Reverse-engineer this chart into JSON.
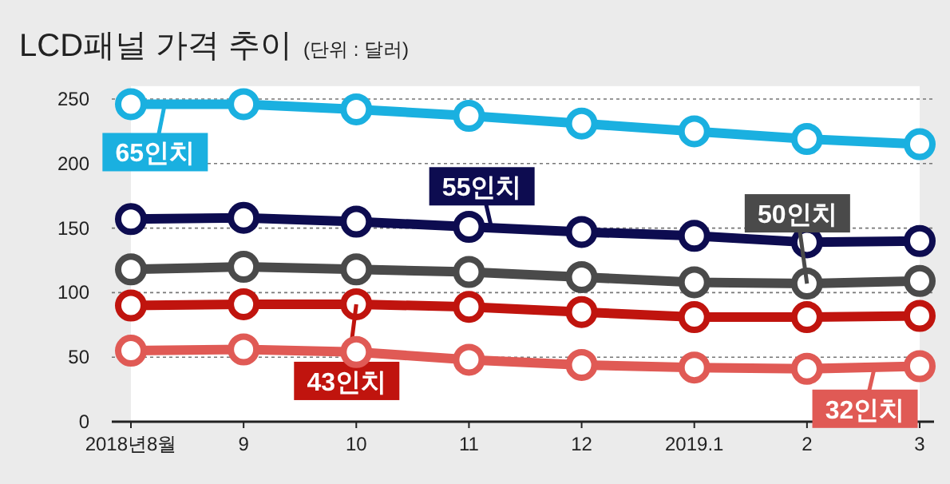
{
  "chart_data": {
    "type": "line",
    "title": "LCD패널 가격 추이",
    "subtitle": "(단위 : 달러)",
    "categories": [
      "2018년8월",
      "9",
      "10",
      "11",
      "12",
      "2019.1",
      "2",
      "3"
    ],
    "series": [
      {
        "name": "65인치",
        "color": "#1ab0e0",
        "values": [
          246,
          246,
          242,
          237,
          231,
          225,
          219,
          215
        ]
      },
      {
        "name": "55인치",
        "color": "#0d0c50",
        "values": [
          157,
          158,
          155,
          151,
          147,
          144,
          139,
          140
        ]
      },
      {
        "name": "50인치",
        "color": "#4a4a4a",
        "values": [
          118,
          120,
          118,
          116,
          112,
          108,
          107,
          109
        ]
      },
      {
        "name": "43인치",
        "color": "#c0140e",
        "values": [
          90,
          91,
          91,
          89,
          85,
          81,
          81,
          82
        ]
      },
      {
        "name": "32인치",
        "color": "#e05a55",
        "values": [
          55,
          56,
          54,
          48,
          44,
          42,
          41,
          43
        ]
      }
    ],
    "ylim": [
      0,
      260
    ],
    "yticks": [
      0,
      50,
      100,
      150,
      200,
      250
    ],
    "grid": "y",
    "marker": "circle",
    "line_style": "solid",
    "legend": false
  }
}
